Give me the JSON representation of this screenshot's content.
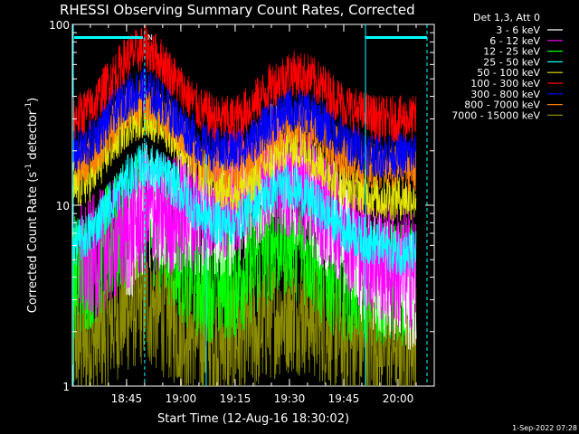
{
  "chart_data": {
    "type": "line",
    "title": "RHESSI Observing Summary Count Rates, Corrected",
    "xlabel": "Start Time (12-Aug-16 18:30:02)",
    "ylabel_main": "Corrected Count Rate (s",
    "ylabel_sup1": "-1",
    "ylabel_mid": " detector",
    "ylabel_sup2": "-1",
    "ylabel_end": ")",
    "yscale": "log",
    "ylim": [
      1,
      100
    ],
    "xlim": [
      "18:30:02",
      "20:10:00"
    ],
    "x_ticks": [
      "18:45",
      "19:00",
      "19:15",
      "19:30",
      "19:45",
      "20:00"
    ],
    "y_ticks": [
      "1",
      "10",
      "100"
    ],
    "footer_date": "1-Sep-2022 07:28",
    "legend": {
      "header": "Det 1,3, Att 0",
      "entries": [
        {
          "label": "3 - 6 keV",
          "color": "#ffffff"
        },
        {
          "label": "6 - 12 keV",
          "color": "#ff00ff"
        },
        {
          "label": "12 - 25 keV",
          "color": "#00ff00"
        },
        {
          "label": "25 - 50 keV",
          "color": "#00ffff"
        },
        {
          "label": "50 - 100 keV",
          "color": "#e6e600"
        },
        {
          "label": "100 - 300 keV",
          "color": "#ff0000"
        },
        {
          "label": "300 - 800 keV",
          "color": "#0000ff"
        },
        {
          "label": "800 - 7000 keV",
          "color": "#ff8000"
        },
        {
          "label": "7000 - 15000 keV",
          "color": "#8c8c00"
        }
      ]
    },
    "flag_label": "N",
    "x_times": [
      "18:30",
      "18:35",
      "18:40",
      "18:45",
      "18:50",
      "18:55",
      "19:00",
      "19:05",
      "19:10",
      "19:15",
      "19:20",
      "19:25",
      "19:30",
      "19:35",
      "19:40",
      "19:45",
      "19:50",
      "19:55",
      "20:00",
      "20:05"
    ],
    "series": [
      {
        "name": "3 - 6 keV",
        "color": "#ffffff",
        "start": "18:45",
        "end": "20:05",
        "values": [
          null,
          null,
          null,
          5,
          10,
          9,
          9,
          9,
          9,
          9,
          12,
          17,
          14,
          12,
          9,
          7,
          5,
          4,
          4,
          3
        ]
      },
      {
        "name": "6 - 12 keV",
        "color": "#ff00ff",
        "start": "18:32",
        "end": "20:05",
        "values": [
          4.5,
          5,
          6,
          7,
          9,
          9,
          9,
          10,
          11,
          12,
          14,
          16,
          14,
          12,
          10,
          8,
          6,
          5,
          4.5,
          4.5
        ]
      },
      {
        "name": "12 - 25 keV",
        "color": "#00ff00",
        "start": "18:30",
        "end": "20:05",
        "values": [
          4,
          4.5,
          6,
          8,
          9,
          7,
          5,
          4,
          3.8,
          4,
          5,
          6.5,
          7,
          6,
          4.5,
          4,
          3.8,
          3.7,
          3.7,
          3.7
        ]
      },
      {
        "name": "25 - 50 keV",
        "color": "#00ffff",
        "start": "18:30",
        "end": "20:05",
        "values": [
          6,
          7,
          10,
          14,
          17,
          15,
          12,
          9,
          8,
          8,
          10,
          12,
          13,
          11,
          9,
          7.5,
          6.5,
          6,
          5.5,
          5.5
        ]
      },
      {
        "name": "50 - 100 keV",
        "color": "#e6e600",
        "start": "18:30",
        "end": "20:05",
        "values": [
          12,
          14,
          20,
          28,
          32,
          28,
          22,
          16,
          13,
          12,
          14,
          18,
          22,
          20,
          16,
          13,
          12,
          11,
          11,
          11
        ]
      },
      {
        "name": "100 - 300 keV",
        "color": "#ff0000",
        "start": "18:30",
        "end": "20:05",
        "values": [
          30,
          34,
          48,
          65,
          75,
          62,
          45,
          34,
          30,
          30,
          36,
          46,
          54,
          52,
          44,
          36,
          32,
          30,
          30,
          30
        ]
      },
      {
        "name": "300 - 800 keV",
        "color": "#0000ff",
        "start": "18:30",
        "end": "20:05",
        "values": [
          19,
          22,
          30,
          40,
          44,
          37,
          28,
          22,
          20,
          20,
          23,
          29,
          34,
          33,
          28,
          23,
          20,
          19,
          19,
          19
        ]
      },
      {
        "name": "800 - 7000 keV",
        "color": "#ff8000",
        "start": "18:30",
        "end": "20:05",
        "values": [
          16,
          18,
          25,
          34,
          38,
          32,
          24,
          18,
          16,
          16,
          19,
          24,
          28,
          27,
          23,
          19,
          17,
          16,
          16,
          16
        ]
      },
      {
        "name": "7000 - 15000 keV",
        "color": "#8c8c00",
        "start": "18:30",
        "end": "20:05",
        "values": [
          1.8,
          1.7,
          2.2,
          2.6,
          2.9,
          2.5,
          2.1,
          1.9,
          1.8,
          1.8,
          2.0,
          2.4,
          2.6,
          2.5,
          2.2,
          1.9,
          1.8,
          1.8,
          1.8,
          1.8
        ]
      }
    ]
  }
}
